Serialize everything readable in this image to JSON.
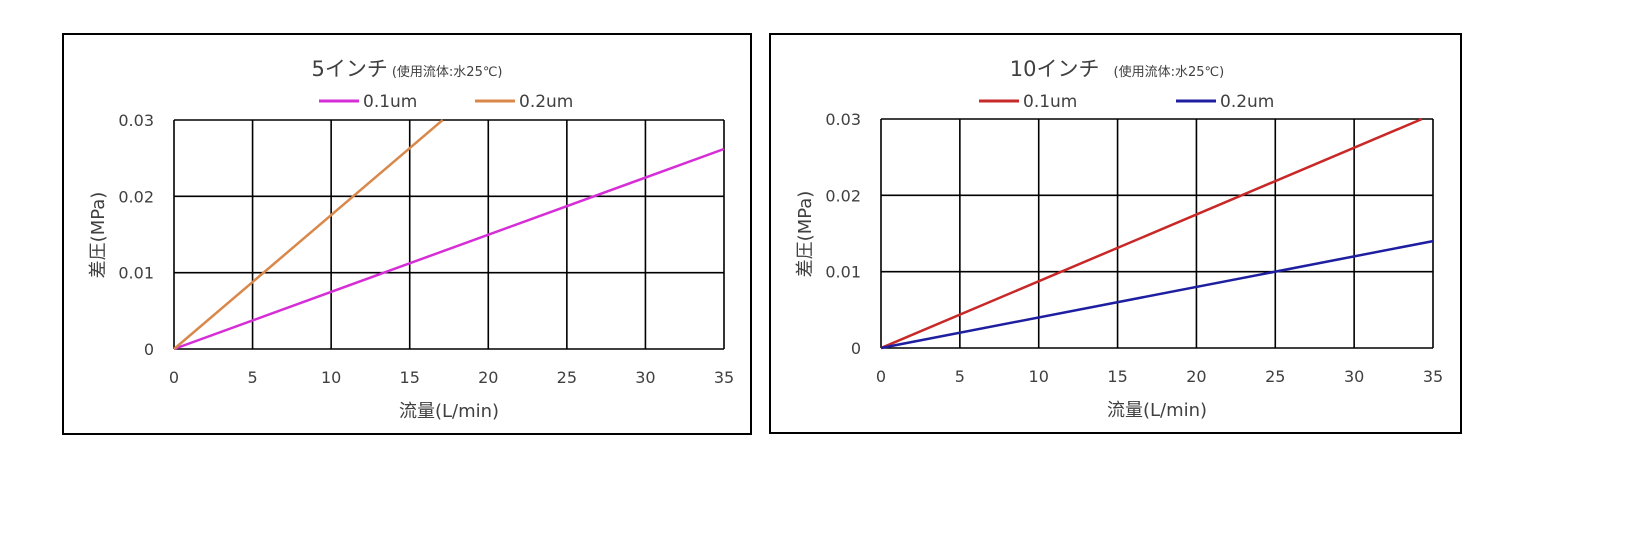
{
  "chart_data": [
    {
      "type": "line",
      "title": "5インチ",
      "subtitle": "(使用流体:水25℃)",
      "xlabel": "流量(L/min)",
      "ylabel": "差圧(MPa)",
      "xlim": [
        0,
        35
      ],
      "ylim": [
        0,
        0.03
      ],
      "xticks": [
        "0",
        "5",
        "10",
        "15",
        "20",
        "25",
        "30",
        "35"
      ],
      "yticks": [
        "0",
        "0.01",
        "0.02",
        "0.03"
      ],
      "grid": true,
      "legend": "top",
      "series": [
        {
          "name": "0.1um",
          "color": "#d62ed6",
          "x": [
            0,
            35
          ],
          "y": [
            0,
            0.0262
          ]
        },
        {
          "name": "0.2um",
          "color": "#d9884a",
          "x": [
            0,
            17.1
          ],
          "y": [
            0,
            0.03
          ]
        }
      ]
    },
    {
      "type": "line",
      "title": "10インチ",
      "subtitle": "(使用流体:水25℃)",
      "xlabel": "流量(L/min)",
      "ylabel": "差圧(MPa)",
      "xlim": [
        0,
        35
      ],
      "ylim": [
        0,
        0.03
      ],
      "xticks": [
        "0",
        "5",
        "10",
        "15",
        "20",
        "25",
        "30",
        "35"
      ],
      "yticks": [
        "0",
        "0.01",
        "0.02",
        "0.03"
      ],
      "grid": true,
      "legend": "top",
      "series": [
        {
          "name": "0.1um",
          "color": "#c82828",
          "x": [
            0,
            34.3
          ],
          "y": [
            0,
            0.03
          ]
        },
        {
          "name": "0.2um",
          "color": "#1e1ea0",
          "x": [
            0,
            35
          ],
          "y": [
            0,
            0.014
          ]
        }
      ]
    }
  ]
}
